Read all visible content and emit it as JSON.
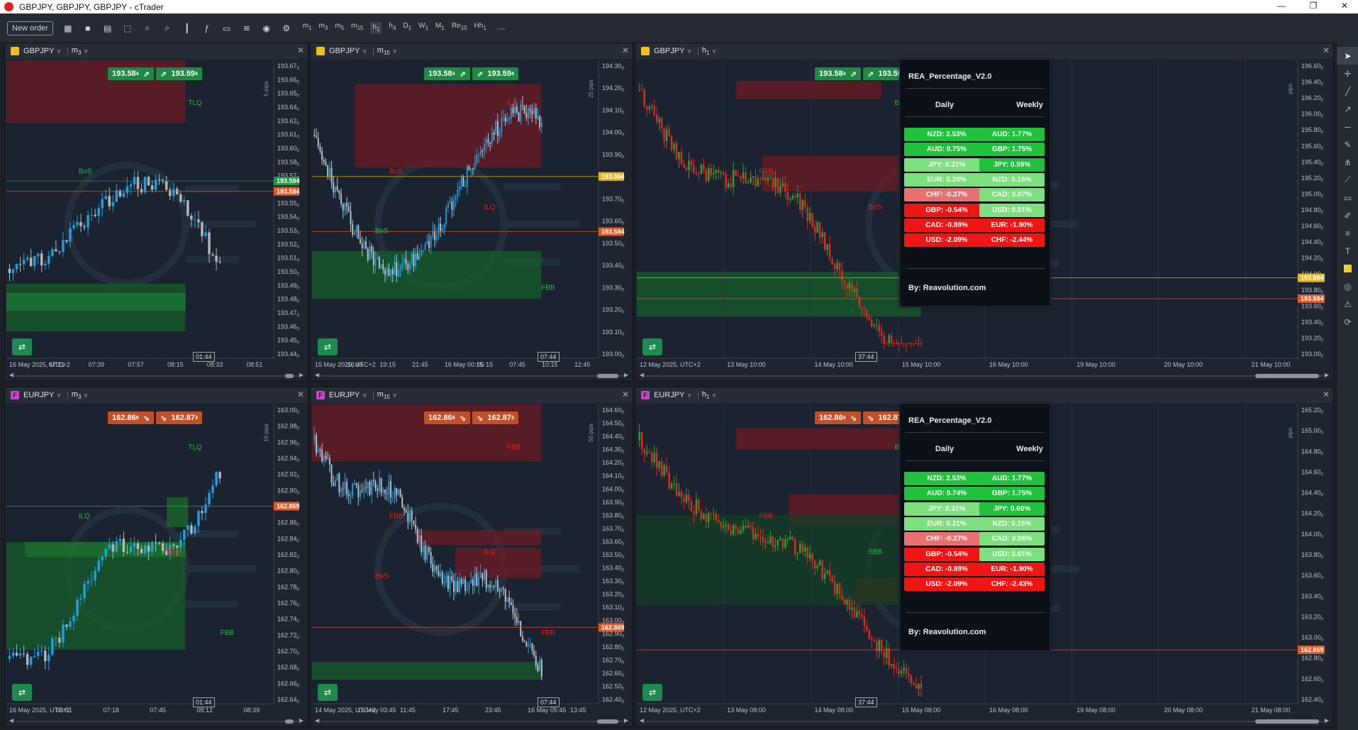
{
  "window": {
    "title": "GBPJPY, GBPJPY, GBPJPY - cTrader",
    "controls": [
      "—",
      "❐",
      "✕"
    ]
  },
  "toolbar": {
    "new_order": "New order",
    "timeframes": [
      {
        "b": "m",
        "s": "1"
      },
      {
        "b": "m",
        "s": "3"
      },
      {
        "b": "m",
        "s": "5"
      },
      {
        "b": "m",
        "s": "15"
      },
      {
        "b": "h",
        "s": "1",
        "active": true
      },
      {
        "b": "h",
        "s": "4"
      },
      {
        "b": "D",
        "s": "1"
      },
      {
        "b": "W",
        "s": "1"
      },
      {
        "b": "M",
        "s": "1"
      },
      {
        "b": "Re",
        "s": "10"
      },
      {
        "b": "Hh",
        "s": "1"
      }
    ],
    "more": "···"
  },
  "colors": {
    "green": "#29b34b",
    "red": "#d03030",
    "bull": "#1aa0e0",
    "bear": "#b5b5b5",
    "bull_h1": "#27a537",
    "bear_h1": "#e02a20",
    "demand": "#155e2a",
    "supply": "#6e1b24"
  },
  "panels": [
    {
      "id": "p1",
      "symbol": "GBPJPY",
      "badge": "#f0c020",
      "badge_txt": "",
      "tf": "m",
      "tf_sub": "3",
      "sell": "193.58",
      "sell_sup": "4",
      "buy": "193.59",
      "buy_sup": "4",
      "pill_color": "#1e8a45",
      "sell_icon": "⇗",
      "buy_icon": "⇗",
      "yticks": [
        [
          "193.67",
          "5"
        ],
        [
          "193.66",
          "0"
        ],
        [
          "193.65",
          "0"
        ],
        [
          "193.64",
          "0"
        ],
        [
          "193.62",
          "5"
        ],
        [
          "193.61",
          "0"
        ],
        [
          "193.60",
          "0"
        ],
        [
          "193.58",
          "5"
        ],
        [
          "193.57",
          "0"
        ],
        [
          "193.56",
          "0"
        ],
        [
          "193.55",
          "0"
        ],
        [
          "193.54",
          "0"
        ],
        [
          "193.53",
          "0"
        ],
        [
          "193.52",
          "0"
        ],
        [
          "193.51",
          "0"
        ],
        [
          "193.50",
          "0"
        ],
        [
          "193.49",
          "0"
        ],
        [
          "193.48",
          "0"
        ],
        [
          "193.47",
          "0"
        ],
        [
          "193.46",
          "0"
        ],
        [
          "193.45",
          "0"
        ],
        [
          "193.44",
          "0"
        ]
      ],
      "pips": "5 pips",
      "price_tags": [
        {
          "t": "193.594",
          "c": "#1e9a45",
          "f": 0.405
        },
        {
          "t": "193.584",
          "c": "#e05a28",
          "f": 0.44
        }
      ],
      "xticks": [
        "16 May 2025, UTC+2",
        "07:21",
        "07:39",
        "07:57",
        "08:15",
        "08:33",
        "08:51"
      ],
      "time_tip": "01:44",
      "labels": [
        {
          "t": "TLQ",
          "c": "#2db34a"
        },
        {
          "t": "BoS",
          "c": "#2db34a"
        }
      ]
    },
    {
      "id": "p2",
      "symbol": "GBPJPY",
      "badge": "#f0c020",
      "badge_txt": "",
      "tf": "m",
      "tf_sub": "15",
      "sell": "193.58",
      "sell_sup": "4",
      "buy": "193.59",
      "buy_sup": "4",
      "pill_color": "#1e8a45",
      "sell_icon": "⇗",
      "buy_icon": "⇗",
      "yticks": [
        [
          "194.30",
          "0"
        ],
        [
          "194.20",
          "0"
        ],
        [
          "194.10",
          "0"
        ],
        [
          "194.00",
          "0"
        ],
        [
          "193.90",
          "0"
        ],
        [
          "193.80",
          "0"
        ],
        [
          "193.70",
          "0"
        ],
        [
          "193.60",
          "0"
        ],
        [
          "193.50",
          "0"
        ],
        [
          "193.40",
          "0"
        ],
        [
          "193.30",
          "0"
        ],
        [
          "193.20",
          "0"
        ],
        [
          "193.10",
          "0"
        ],
        [
          "193.00",
          "0"
        ]
      ],
      "pips": "25 pips",
      "price_tags": [
        {
          "t": "193.884",
          "c": "#e8b820",
          "f": 0.39
        },
        {
          "t": "193.584",
          "c": "#e05a28",
          "f": 0.575
        }
      ],
      "xticks": [
        "15 May 2025, UTC+2",
        "16:45",
        "19:15",
        "21:45",
        "16 May 00:15",
        "05:15",
        "07:45",
        "10:15",
        "12:45"
      ],
      "time_tip": "07:44",
      "labels": [
        {
          "t": "ILQ",
          "c": "#e02020"
        },
        {
          "t": "BoS",
          "c": "#e02020"
        },
        {
          "t": "FBB",
          "c": "#2db34a"
        },
        {
          "t": "ILQ",
          "c": "#e02020"
        },
        {
          "t": "BoS",
          "c": "#2db34a"
        }
      ]
    },
    {
      "id": "p3",
      "symbol": "GBPJPY",
      "badge": "#f0c020",
      "badge_txt": "",
      "tf": "h",
      "tf_sub": "1",
      "sell": "193.58",
      "sell_sup": "4",
      "buy": "193.59",
      "buy_sup": "4",
      "pill_color": "#1e8a45",
      "sell_icon": "⇗",
      "buy_icon": "⇗",
      "yticks": [
        [
          "196.60",
          "0"
        ],
        [
          "196.40",
          "0"
        ],
        [
          "196.20",
          "0"
        ],
        [
          "196.00",
          "0"
        ],
        [
          "195.80",
          "0"
        ],
        [
          "195.60",
          "0"
        ],
        [
          "195.40",
          "0"
        ],
        [
          "195.20",
          "0"
        ],
        [
          "195.00",
          "0"
        ],
        [
          "194.80",
          "0"
        ],
        [
          "194.60",
          "0"
        ],
        [
          "194.40",
          "0"
        ],
        [
          "194.20",
          "0"
        ],
        [
          "194.00",
          "0"
        ],
        [
          "193.80",
          "0"
        ],
        [
          "193.60",
          "0"
        ],
        [
          "193.40",
          "0"
        ],
        [
          "193.20",
          "0"
        ],
        [
          "193.00",
          "0"
        ]
      ],
      "pips": "pips",
      "price_tags": [
        {
          "t": "193.884",
          "c": "#e8b820",
          "f": 0.73
        },
        {
          "t": "193.584",
          "c": "#e05a28",
          "f": 0.8
        }
      ],
      "xticks": [
        "12 May 2025, UTC+2",
        "13 May 10:00",
        "14 May 10:00",
        "15 May 10:00",
        "16 May 10:00",
        "19 May 10:00",
        "20 May 10:00",
        "21 May 10:00"
      ],
      "time_tip": "37:44",
      "labels": [
        {
          "t": "BoS",
          "c": "#2db34a"
        },
        {
          "t": "FBB",
          "c": "#e02020"
        },
        {
          "t": "ILQ",
          "c": "#e02020"
        },
        {
          "t": "BoS",
          "c": "#e02020"
        }
      ],
      "rea": true
    },
    {
      "id": "p4",
      "symbol": "EURJPY",
      "badge": "#cc44cc",
      "badge_txt": "F",
      "tf": "m",
      "tf_sub": "3",
      "sell": "162.86",
      "sell_sup": "9",
      "buy": "162.87",
      "buy_sup": "3",
      "pill_color": "#c0502a",
      "sell_icon": "⇘",
      "buy_icon": "⇘",
      "yticks": [
        [
          "163.00",
          "0"
        ],
        [
          "162.98",
          "0"
        ],
        [
          "162.96",
          "0"
        ],
        [
          "162.94",
          "0"
        ],
        [
          "162.92",
          "0"
        ],
        [
          "162.90",
          "0"
        ],
        [
          "162.88",
          "0"
        ],
        [
          "162.86",
          "0"
        ],
        [
          "162.84",
          "0"
        ],
        [
          "162.82",
          "0"
        ],
        [
          "162.80",
          "0"
        ],
        [
          "162.78",
          "0"
        ],
        [
          "162.76",
          "0"
        ],
        [
          "162.74",
          "0"
        ],
        [
          "162.72",
          "0"
        ],
        [
          "162.70",
          "0"
        ],
        [
          "162.68",
          "0"
        ],
        [
          "162.66",
          "0"
        ],
        [
          "162.64",
          "0"
        ]
      ],
      "pips": "10 pips",
      "price_tags": [
        {
          "t": "162.869",
          "c": "#e05a28",
          "f": 0.34
        }
      ],
      "xticks": [
        "16 May 2025, UTC+2",
        "06:51",
        "07:18",
        "07:45",
        "08:12",
        "08:39"
      ],
      "time_tip": "01:44",
      "labels": [
        {
          "t": "TLQ",
          "c": "#2db34a"
        },
        {
          "t": "ILQ",
          "c": "#2db34a"
        },
        {
          "t": "FBB",
          "c": "#2db34a"
        },
        {
          "t": "BoS",
          "c": "#e02020"
        }
      ]
    },
    {
      "id": "p5",
      "symbol": "EURJPY",
      "badge": "#cc44cc",
      "badge_txt": "F",
      "tf": "m",
      "tf_sub": "15",
      "sell": "162.86",
      "sell_sup": "9",
      "buy": "162.87",
      "buy_sup": "3",
      "pill_color": "#c0502a",
      "sell_icon": "⇘",
      "buy_icon": "⇘",
      "yticks": [
        [
          "164.60",
          "0"
        ],
        [
          "164.50",
          "0"
        ],
        [
          "164.40",
          "0"
        ],
        [
          "164.30",
          "0"
        ],
        [
          "164.20",
          "0"
        ],
        [
          "164.10",
          "0"
        ],
        [
          "164.00",
          "0"
        ],
        [
          "163.90",
          "0"
        ],
        [
          "163.80",
          "0"
        ],
        [
          "163.70",
          "0"
        ],
        [
          "163.60",
          "0"
        ],
        [
          "163.50",
          "0"
        ],
        [
          "163.40",
          "0"
        ],
        [
          "163.30",
          "0"
        ],
        [
          "163.20",
          "0"
        ],
        [
          "163.10",
          "0"
        ],
        [
          "163.00",
          "0"
        ],
        [
          "162.90",
          "0"
        ],
        [
          "162.80",
          "0"
        ],
        [
          "162.70",
          "0"
        ],
        [
          "162.60",
          "0"
        ],
        [
          "162.50",
          "0"
        ],
        [
          "162.40",
          "0"
        ]
      ],
      "pips": "50 pips",
      "price_tags": [
        {
          "t": "162.869",
          "c": "#e05a28",
          "f": 0.745
        }
      ],
      "xticks": [
        "14 May 2025, UTC+2",
        "15 May 03:45",
        "11:45",
        "17:45",
        "23:45",
        "16 May 05:45",
        "13:45"
      ],
      "time_tip": "07:44",
      "labels": [
        {
          "t": "FBB",
          "c": "#e02020"
        },
        {
          "t": "FBB",
          "c": "#e02020"
        },
        {
          "t": "FBB",
          "c": "#e02020"
        },
        {
          "t": "ILQ",
          "c": "#e02020"
        },
        {
          "t": "BoS",
          "c": "#e02020"
        }
      ]
    },
    {
      "id": "p6",
      "symbol": "EURJPY",
      "badge": "#cc44cc",
      "badge_txt": "F",
      "tf": "h",
      "tf_sub": "1",
      "sell": "162.86",
      "sell_sup": "9",
      "buy": "162.87",
      "buy_sup": "3",
      "pill_color": "#c0502a",
      "sell_icon": "⇘",
      "buy_icon": "⇘",
      "yticks": [
        [
          "165.20",
          "0"
        ],
        [
          "165.00",
          "0"
        ],
        [
          "164.80",
          "0"
        ],
        [
          "164.60",
          "0"
        ],
        [
          "164.40",
          "0"
        ],
        [
          "164.20",
          "0"
        ],
        [
          "164.00",
          "0"
        ],
        [
          "163.80",
          "0"
        ],
        [
          "163.60",
          "0"
        ],
        [
          "163.40",
          "0"
        ],
        [
          "163.20",
          "0"
        ],
        [
          "163.00",
          "0"
        ],
        [
          "162.80",
          "0"
        ],
        [
          "162.60",
          "0"
        ],
        [
          "162.40",
          "0"
        ]
      ],
      "pips": "pips",
      "price_tags": [
        {
          "t": "162.869",
          "c": "#e05a28",
          "f": 0.82
        }
      ],
      "xticks": [
        "12 May 2025, UTC+2",
        "13 May 08:00",
        "14 May 08:00",
        "15 May 08:00",
        "16 May 08:00",
        "19 May 08:00",
        "20 May 08:00",
        "21 May 08:00"
      ],
      "time_tip": "37:44",
      "labels": [
        {
          "t": "BoS",
          "c": "#2db34a"
        },
        {
          "t": "FBB",
          "c": "#e02020"
        },
        {
          "t": "ILQ",
          "c": "#e02020"
        },
        {
          "t": "SBB",
          "c": "#2db34a"
        }
      ],
      "rea": true
    }
  ],
  "rea": [
    {
      "title": "REA_Percentage_V2.0",
      "daily_h": "Daily",
      "weekly_h": "Weekly",
      "by": "By: Reavolution.com",
      "daily": [
        [
          "NZD: 2.53%",
          "#1fc23a"
        ],
        [
          "AUD: 0.75%",
          "#1fc23a"
        ],
        [
          "JPY: 0.31%",
          "#7ce07f"
        ],
        [
          "EUR: 0.20%",
          "#7ce07f"
        ],
        [
          "CHF: -0.27%",
          "#e87070"
        ],
        [
          "GBP: -0.54%",
          "#ee1515"
        ],
        [
          "CAD: -0.88%",
          "#ee1515"
        ],
        [
          "USD: -2.09%",
          "#ee1515"
        ]
      ],
      "weekly": [
        [
          "AUD: 1.77%",
          "#1fc23a"
        ],
        [
          "GBP: 1.75%",
          "#1fc23a"
        ],
        [
          "JPY: 0.59%",
          "#1fc23a"
        ],
        [
          "NZD: 0.15%",
          "#7ce07f"
        ],
        [
          "CAD: 0.07%",
          "#7ce07f"
        ],
        [
          "USD: 0.01%",
          "#7ce07f"
        ],
        [
          "EUR: -1.90%",
          "#ee1515"
        ],
        [
          "CHF: -2.44%",
          "#ee1515"
        ]
      ]
    },
    {
      "title": "REA_Percentage_V2.0",
      "daily_h": "Daily",
      "weekly_h": "Weekly",
      "by": "By: Reavolution.com",
      "daily": [
        [
          "NZD: 2.53%",
          "#1fc23a"
        ],
        [
          "AUD: 0.74%",
          "#1fc23a"
        ],
        [
          "JPY: 0.31%",
          "#7ce07f"
        ],
        [
          "EUR: 0.21%",
          "#7ce07f"
        ],
        [
          "CHF: -0.27%",
          "#e87070"
        ],
        [
          "GBP: -0.54%",
          "#ee1515"
        ],
        [
          "CAD: -0.88%",
          "#ee1515"
        ],
        [
          "USD: -2.09%",
          "#ee1515"
        ]
      ],
      "weekly": [
        [
          "AUD: 1.77%",
          "#1fc23a"
        ],
        [
          "GBP: 1.75%",
          "#1fc23a"
        ],
        [
          "JPY: 0.60%",
          "#1fc23a"
        ],
        [
          "NZD: 0.15%",
          "#7ce07f"
        ],
        [
          "CAD: 0.06%",
          "#7ce07f"
        ],
        [
          "USD: 0.01%",
          "#7ce07f"
        ],
        [
          "EUR: -1.90%",
          "#ee1515"
        ],
        [
          "CHF: -2.43%",
          "#ee1515"
        ]
      ]
    }
  ],
  "rightbar_icons": [
    "cursor-icon",
    "crosshair-icon",
    "line-icon",
    "ray-icon",
    "hline-icon",
    "pen-icon",
    "fib-icon",
    "pattern-icon",
    "note-icon",
    "brush-icon",
    "channel-icon",
    "text-icon",
    "color-icon",
    "camera-icon",
    "alert-icon",
    "clock-icon"
  ]
}
